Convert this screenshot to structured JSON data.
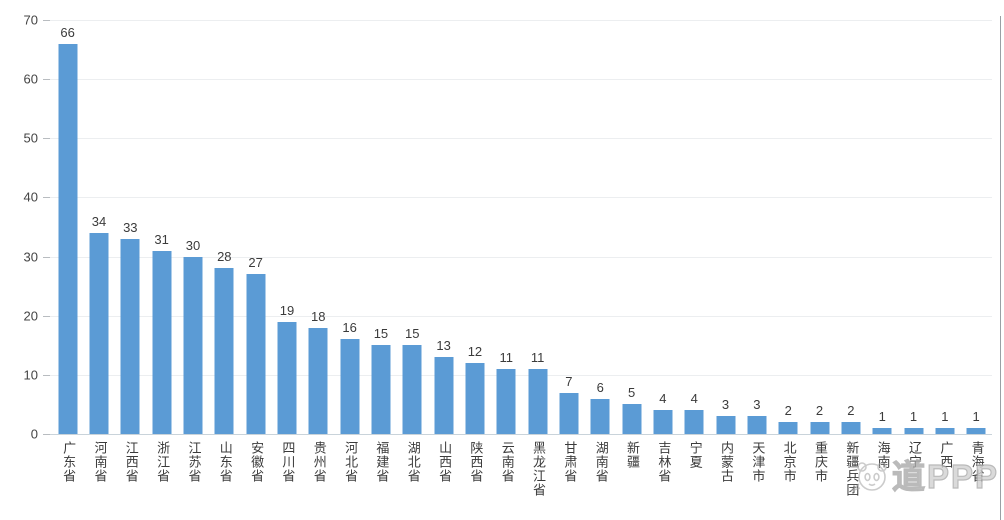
{
  "chart_data": {
    "type": "bar",
    "title": "",
    "xlabel": "",
    "ylabel": "",
    "categories": [
      "广东省",
      "河南省",
      "江西省",
      "浙江省",
      "江苏省",
      "山东省",
      "安徽省",
      "四川省",
      "贵州省",
      "河北省",
      "福建省",
      "湖北省",
      "山西省",
      "陕西省",
      "云南省",
      "黑龙江省",
      "甘肃省",
      "湖南省",
      "新疆",
      "吉林省",
      "宁夏",
      "内蒙古",
      "天津市",
      "北京市",
      "重庆市",
      "新疆兵团",
      "海南",
      "辽宁",
      "广西",
      "青海省"
    ],
    "values": [
      66,
      34,
      33,
      31,
      30,
      28,
      27,
      19,
      18,
      16,
      15,
      15,
      13,
      12,
      11,
      11,
      7,
      6,
      5,
      4,
      4,
      3,
      3,
      2,
      2,
      2,
      1,
      1,
      1,
      1
    ],
    "ylim": [
      0,
      70
    ],
    "yticks": [
      0,
      10,
      20,
      30,
      40,
      50,
      60,
      70
    ],
    "grid": true,
    "legend": "none",
    "bar_color": "#5B9BD5",
    "data_labels": true
  },
  "watermark": {
    "logo": "panda-logo",
    "text": "道PPP"
  }
}
